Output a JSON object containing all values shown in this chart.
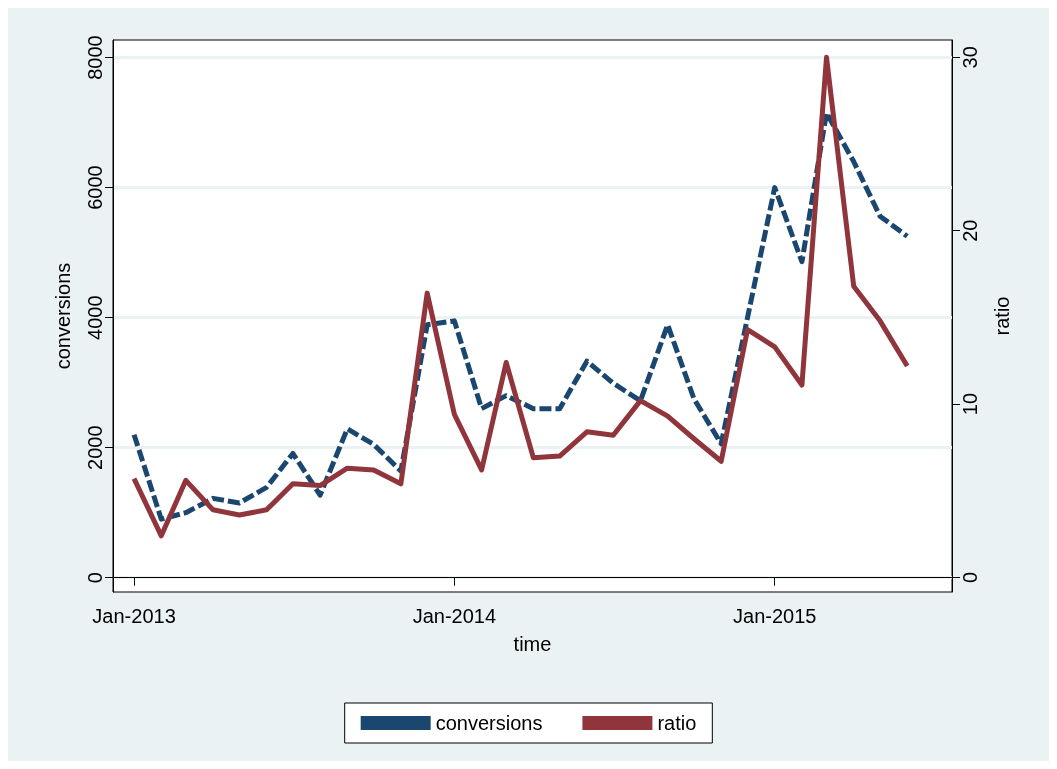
{
  "chart_data": {
    "type": "line",
    "xlabel": "time",
    "ylabel": "conversions",
    "y2label": "ratio",
    "x": [
      "2013-01",
      "2013-02",
      "2013-03",
      "2013-04",
      "2013-05",
      "2013-06",
      "2013-07",
      "2013-08",
      "2013-09",
      "2013-10",
      "2013-11",
      "2013-12",
      "2014-01",
      "2014-02",
      "2014-03",
      "2014-04",
      "2014-05",
      "2014-06",
      "2014-07",
      "2014-08",
      "2014-09",
      "2014-10",
      "2014-11",
      "2014-12",
      "2015-01",
      "2015-02",
      "2015-03",
      "2015-04",
      "2015-05",
      "2015-06"
    ],
    "series": [
      {
        "name": "conversions",
        "color": "#1a476f",
        "line_style": "dashed",
        "values": [
          2200,
          900,
          1000,
          1220,
          1150,
          1390,
          1910,
          1270,
          2290,
          2050,
          1640,
          3890,
          3950,
          2600,
          2800,
          2600,
          2600,
          3330,
          2990,
          2720,
          3890,
          2750,
          2060,
          4000,
          6000,
          4860,
          7150,
          6400,
          5560,
          5250
        ]
      },
      {
        "name": "ratio",
        "color": "#90353b",
        "line_style": "solid",
        "axis": "y2",
        "values": [
          5.7,
          2.4,
          5.6,
          3.9,
          3.6,
          3.9,
          5.4,
          5.3,
          6.3,
          6.2,
          5.4,
          16.4,
          9.4,
          6.2,
          12.4,
          6.9,
          7.0,
          8.4,
          8.2,
          10.2,
          9.3,
          8.0,
          6.7,
          14.3,
          13.3,
          11.1,
          30,
          16.8,
          14.8,
          12.2
        ]
      }
    ],
    "xlim": [
      "2012-12-08",
      "2015-07-22"
    ],
    "xticks": [
      {
        "value": "2013-01",
        "label": "Jan-2013"
      },
      {
        "value": "2014-01",
        "label": "Jan-2014"
      },
      {
        "value": "2015-01",
        "label": "Jan-2015"
      }
    ],
    "ylim": [
      -220,
      8270
    ],
    "yticks": [
      0,
      2000,
      4000,
      6000,
      8000
    ],
    "y2lim": [
      -0.84,
      31
    ],
    "y2ticks": [
      0,
      10,
      20,
      30
    ],
    "grid": "y",
    "legend": "bottom",
    "marker": "none"
  }
}
